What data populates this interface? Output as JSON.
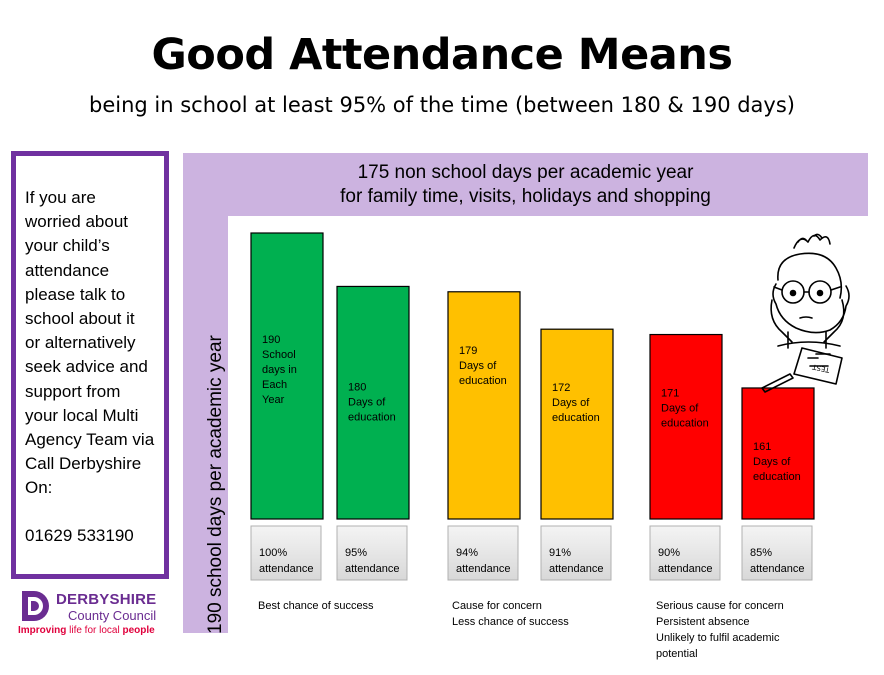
{
  "header": {
    "title": "Good Attendance Means",
    "subtitle": "being in school at least 95% of the time (between 180 & 190 days)"
  },
  "info_box": {
    "lines": [
      "If you are",
      "worried about",
      "your child’s",
      "attendance",
      "please talk to",
      "school about it",
      "or alternatively",
      "seek advice and",
      "support from",
      "your local Multi",
      "Agency Team via",
      "Call Derbyshire",
      "On:"
    ],
    "phone": "01629 533190"
  },
  "top_band": {
    "line1": "175 non school days per academic  year",
    "line2": "for family time, visits, holidays and shopping"
  },
  "side_band": {
    "label": "190 school days per academic year"
  },
  "colors": {
    "green": "#00b050",
    "amber": "#ffc000",
    "red": "#ff0000",
    "purple": "#7030a0",
    "band": "#ccb3e0"
  },
  "chart_data": {
    "type": "bar",
    "ylim": [
      0,
      190
    ],
    "bars": [
      {
        "days": 190,
        "label": [
          "190",
          "School",
          "days in",
          "Each",
          "Year"
        ],
        "attendance": [
          "100%",
          "attendance"
        ],
        "color": "#00b050"
      },
      {
        "days": 180,
        "label": [
          "180",
          "Days of",
          "education"
        ],
        "attendance": [
          "95%",
          "attendance"
        ],
        "color": "#00b050"
      },
      {
        "days": 179,
        "label": [
          "179",
          "Days of",
          "education"
        ],
        "attendance": [
          "94%",
          "attendance"
        ],
        "color": "#ffc000"
      },
      {
        "days": 172,
        "label": [
          "172",
          "Days of",
          "education"
        ],
        "attendance": [
          "91%",
          "attendance"
        ],
        "color": "#ffc000"
      },
      {
        "days": 171,
        "label": [
          "171",
          "Days of",
          "education"
        ],
        "attendance": [
          "90%",
          "attendance"
        ],
        "color": "#ff0000"
      },
      {
        "days": 161,
        "label": [
          "161",
          "Days of",
          "education"
        ],
        "attendance": [
          "85%",
          "attendance"
        ],
        "color": "#ff0000"
      }
    ],
    "groups": [
      {
        "lines": [
          "Best chance of success"
        ]
      },
      {
        "lines": [
          "Cause for concern",
          "Less chance of success"
        ]
      },
      {
        "lines": [
          "Serious cause for concern",
          "Persistent absence",
          "Unlikely to fulfil academic",
          "potential"
        ]
      }
    ]
  },
  "logo": {
    "name": "DERBYSHIRE",
    "council": "County Council",
    "tag_bold": "Improving",
    "tag_mid": " life for local ",
    "tag_end": "people"
  }
}
